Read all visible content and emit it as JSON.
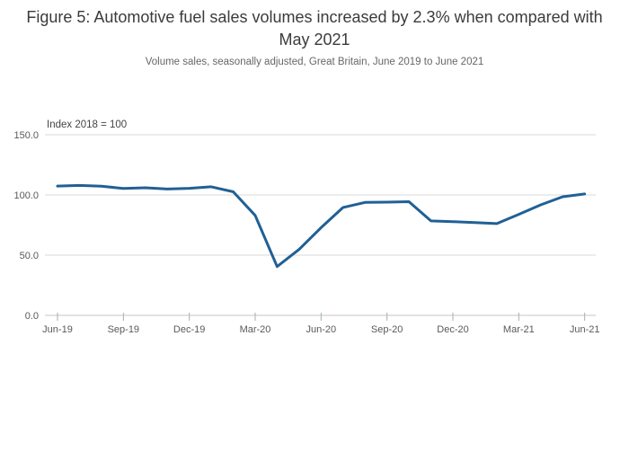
{
  "figure": {
    "title": "Figure 5: Automotive fuel sales volumes increased by 2.3% when compared with May 2021",
    "subtitle": "Volume sales, seasonally adjusted, Great Britain, June 2019 to June 2021"
  },
  "chart_data": {
    "type": "line",
    "title": "Figure 5: Automotive fuel sales volumes increased by 2.3% when compared with May 2021",
    "subtitle": "Volume sales, seasonally adjusted, Great Britain, June 2019 to June 2021",
    "annotation": "Index 2018 = 100",
    "x": [
      "Jun-19",
      "Jul-19",
      "Aug-19",
      "Sep-19",
      "Oct-19",
      "Nov-19",
      "Dec-19",
      "Jan-20",
      "Feb-20",
      "Mar-20",
      "Apr-20",
      "May-20",
      "Jun-20",
      "Jul-20",
      "Aug-20",
      "Sep-20",
      "Oct-20",
      "Nov-20",
      "Dec-20",
      "Jan-21",
      "Feb-21",
      "Mar-21",
      "Apr-21",
      "May-21",
      "Jun-21"
    ],
    "series": [
      {
        "name": "Automotive fuel volume sales, seasonally adjusted",
        "color": "#206095",
        "values": [
          107.4,
          107.9,
          107.3,
          105.4,
          106.0,
          104.9,
          105.5,
          106.8,
          102.6,
          83.0,
          40.5,
          54.8,
          72.8,
          89.6,
          93.8,
          94.0,
          94.4,
          78.4,
          77.8,
          77.0,
          76.2,
          83.9,
          91.8,
          98.5,
          100.8
        ]
      }
    ],
    "xlabel": "",
    "ylabel": "Index 2018 = 100",
    "ylim": [
      0,
      150
    ],
    "yticks": [
      0,
      50,
      100,
      150
    ],
    "ytick_labels": [
      "0.0",
      "50.0",
      "100.0",
      "150.0"
    ],
    "xtick_every": 3,
    "xtick_labels": [
      "Jun-19",
      "Sep-19",
      "Dec-19",
      "Mar-20",
      "Jun-20",
      "Sep-20",
      "Dec-20",
      "Mar-21",
      "Jun-21"
    ],
    "grid": true,
    "legend": "none",
    "colors": {
      "line": "#206095",
      "grid": "#d9d9d9",
      "axis": "#c4c4c4",
      "tick": "#9fb1bc",
      "label": "#595959"
    }
  }
}
